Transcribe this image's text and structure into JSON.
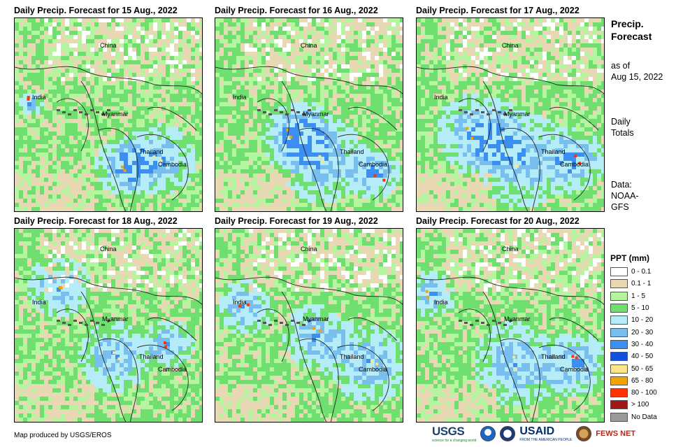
{
  "panels": [
    {
      "title": "Daily Precip. Forecast for 15 Aug., 2022",
      "labels": {
        "china": "China",
        "india": "India",
        "myanmar": "Myanmar",
        "thailand": "Thailand",
        "cambodia": "Cambodia"
      }
    },
    {
      "title": "Daily Precip. Forecast for 16 Aug., 2022",
      "labels": {
        "china": "China",
        "india": "India",
        "myanmar": "Myanmar",
        "thailand": "Thailand",
        "cambodia": "Cambodia"
      }
    },
    {
      "title": "Daily Precip. Forecast for 17 Aug., 2022",
      "labels": {
        "china": "China",
        "india": "India",
        "myanmar": "Myanmar",
        "thailand": "Thailand",
        "cambodia": "Cambodia"
      }
    },
    {
      "title": "Daily Precip. Forecast for 18 Aug., 2022",
      "labels": {
        "china": "China",
        "india": "India",
        "myanmar": "Myanmar",
        "thailand": "Thailand",
        "cambodia": "Cambodia"
      }
    },
    {
      "title": "Daily Precip. Forecast for 19 Aug., 2022",
      "labels": {
        "china": "China",
        "india": "India",
        "myanmar": "Myanmar",
        "thailand": "Thailand",
        "cambodia": "Cambodia"
      }
    },
    {
      "title": "Daily Precip. Forecast for 20 Aug., 2022",
      "labels": {
        "china": "China",
        "india": "India",
        "myanmar": "Myanmar",
        "thailand": "Thailand",
        "cambodia": "Cambodia"
      }
    }
  ],
  "side": {
    "title_line1": "Precip.",
    "title_line2": "Forecast",
    "asof_line1": "as of",
    "asof_line2": "Aug 15, 2022",
    "totals_line1": "Daily",
    "totals_line2": "Totals",
    "data_line1": "Data:",
    "data_line2": "NOAA-",
    "data_line3": "GFS"
  },
  "legend": {
    "title": "PPT (mm)",
    "items": [
      {
        "label": "0 - 0.1",
        "color": "#ffffff"
      },
      {
        "label": "0.1 - 1",
        "color": "#e8d8b4"
      },
      {
        "label": "1 - 5",
        "color": "#b6f5a0"
      },
      {
        "label": "5 - 10",
        "color": "#6fe06f"
      },
      {
        "label": "10 - 20",
        "color": "#b4ecf8"
      },
      {
        "label": "20 - 30",
        "color": "#78bff0"
      },
      {
        "label": "30 - 40",
        "color": "#3c8ff0"
      },
      {
        "label": "40 - 50",
        "color": "#1450e0"
      },
      {
        "label": "50 - 65",
        "color": "#fde68a"
      },
      {
        "label": "65 - 80",
        "color": "#f5a300"
      },
      {
        "label": "80 - 100",
        "color": "#ff3300"
      },
      {
        "label": "> 100",
        "color": "#a01818"
      },
      {
        "label": "No Data",
        "color": "#9a9a9a"
      }
    ]
  },
  "credit": "Map produced by USGS/EROS",
  "logos": {
    "usgs": "USGS",
    "usgs_tagline": "science for a changing world",
    "usaid": "USAID",
    "usaid_tagline": "FROM THE AMERICAN PEOPLE",
    "fews": "FEWS NET"
  }
}
